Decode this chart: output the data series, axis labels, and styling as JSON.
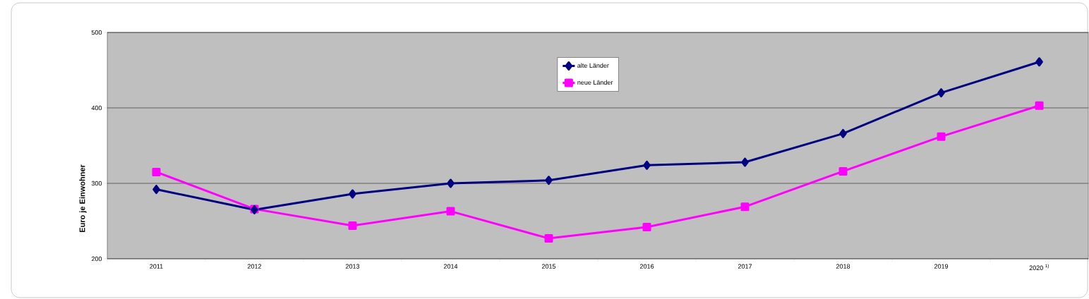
{
  "chart_data": {
    "type": "line",
    "ylabel": "Euro je Einwohner",
    "categories": [
      "2011",
      "2012",
      "2013",
      "2014",
      "2015",
      "2016",
      "2017",
      "2018",
      "2019",
      "2020 $^{1)}$"
    ],
    "series": [
      {
        "name": "alte Länder",
        "color": "#000080",
        "marker": "diamond",
        "values": [
          292,
          265,
          286,
          300,
          304,
          324,
          328,
          366,
          420,
          461
        ]
      },
      {
        "name": "neue Länder",
        "color": "#ff00ff",
        "marker": "square",
        "values": [
          315,
          266,
          244,
          263,
          227,
          242,
          269,
          316,
          362,
          403
        ]
      }
    ],
    "ylim": [
      200,
      500
    ],
    "yticks": [
      200,
      300,
      400,
      500
    ],
    "grid": "y",
    "legend": "top",
    "line_style": "solid"
  }
}
